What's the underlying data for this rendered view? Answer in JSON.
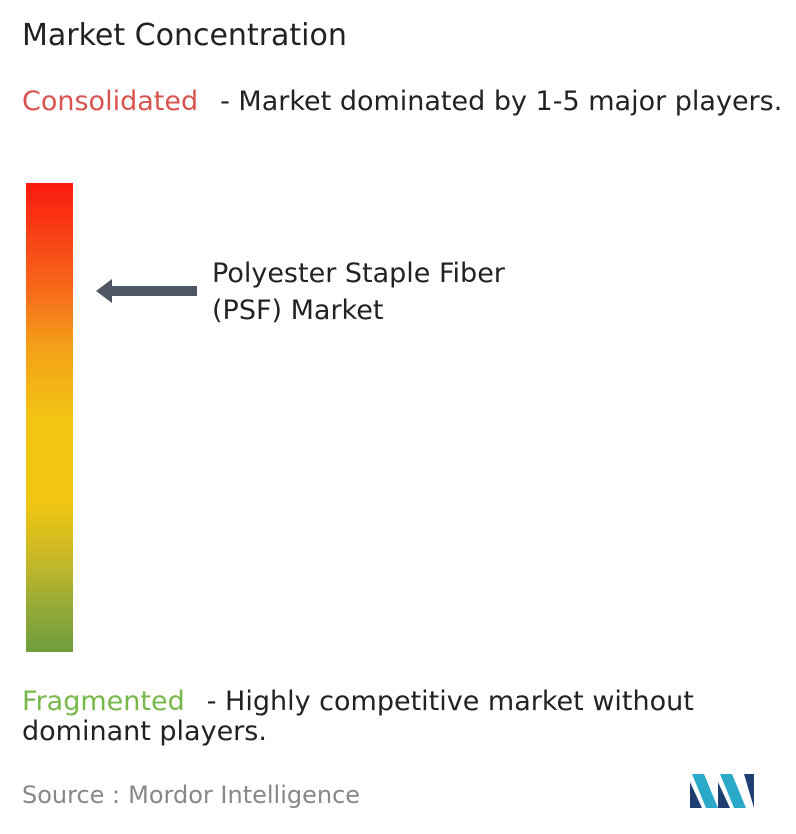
{
  "title": "Market Concentration",
  "consolidated": {
    "label": "Consolidated",
    "description": "- Market dominated by 1-5 major players."
  },
  "marker": {
    "label": "Polyester Staple Fiber (PSF) Market"
  },
  "fragmented": {
    "label": "Fragmented",
    "description": "- Highly competitive market without dominant players."
  },
  "source": {
    "prefix": "Source :",
    "name": "Mordor Intelligence"
  }
}
